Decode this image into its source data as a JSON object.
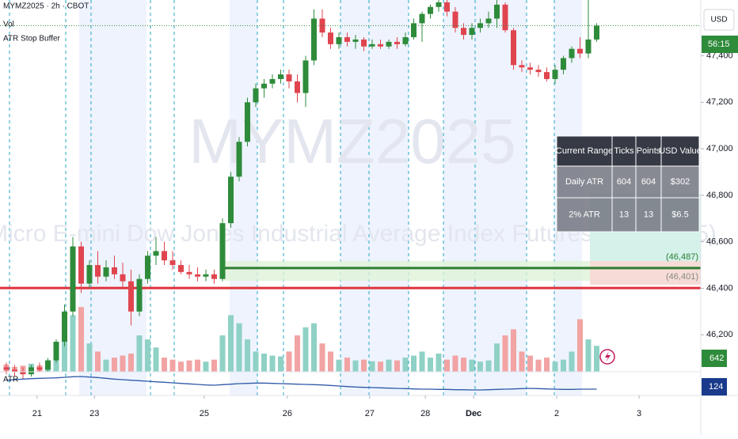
{
  "header": {
    "symbol": "MYMZ2025 · 2h · CBOT",
    "indicators": [
      "Vol",
      "ATR Stop Buffer"
    ],
    "atr_pane": "ATR",
    "currency": "USD"
  },
  "watermark": {
    "symbol": "MYMZ2025",
    "description": "Micro E-mini Dow Jones Industrial Average Index Futures (Dec 2025)"
  },
  "chart_data": {
    "type": "candlestick",
    "up_color": "#2e8b3a",
    "down_color": "#e0454f",
    "candles": [
      [
        46060,
        46080,
        46030,
        46050
      ],
      [
        46050,
        46070,
        46020,
        46040
      ],
      [
        46040,
        46060,
        46010,
        46030
      ],
      [
        46030,
        46070,
        46020,
        46060
      ],
      [
        46060,
        46080,
        46040,
        46050
      ],
      [
        46050,
        46100,
        46040,
        46090
      ],
      [
        46090,
        46180,
        46080,
        46170
      ],
      [
        46170,
        46330,
        46150,
        46300
      ],
      [
        46300,
        46620,
        46280,
        46580
      ],
      [
        46580,
        46600,
        46380,
        46420
      ],
      [
        46420,
        46520,
        46400,
        46500
      ],
      [
        46500,
        46560,
        46420,
        46450
      ],
      [
        46450,
        46520,
        46430,
        46490
      ],
      [
        46490,
        46540,
        46440,
        46460
      ],
      [
        46460,
        46510,
        46400,
        46430
      ],
      [
        46430,
        46480,
        46240,
        46300
      ],
      [
        46300,
        46460,
        46280,
        46440
      ],
      [
        46440,
        46560,
        46420,
        46540
      ],
      [
        46540,
        46620,
        46500,
        46560
      ],
      [
        46560,
        46600,
        46500,
        46520
      ],
      [
        46520,
        46560,
        46480,
        46500
      ],
      [
        46500,
        46520,
        46460,
        46470
      ],
      [
        46470,
        46500,
        46440,
        46460
      ],
      [
        46460,
        46490,
        46430,
        46450
      ],
      [
        46450,
        46480,
        46430,
        46460
      ],
      [
        46460,
        46480,
        46420,
        46440
      ],
      [
        46440,
        46700,
        46430,
        46680
      ],
      [
        46680,
        46900,
        46660,
        46880
      ],
      [
        46880,
        47050,
        46860,
        47030
      ],
      [
        47030,
        47220,
        47010,
        47200
      ],
      [
        47200,
        47280,
        47180,
        47260
      ],
      [
        47260,
        47300,
        47220,
        47280
      ],
      [
        47280,
        47320,
        47260,
        47300
      ],
      [
        47300,
        47340,
        47280,
        47320
      ],
      [
        47320,
        47340,
        47260,
        47290
      ],
      [
        47290,
        47320,
        47200,
        47240
      ],
      [
        47240,
        47400,
        47180,
        47380
      ],
      [
        47380,
        47600,
        47360,
        47560
      ],
      [
        47560,
        47600,
        47480,
        47500
      ],
      [
        47500,
        47520,
        47430,
        47450
      ],
      [
        47450,
        47500,
        47430,
        47480
      ],
      [
        47480,
        47500,
        47440,
        47460
      ],
      [
        47460,
        47490,
        47430,
        47470
      ],
      [
        47470,
        47480,
        47420,
        47440
      ],
      [
        47440,
        47470,
        47430,
        47450
      ],
      [
        47450,
        47470,
        47430,
        47440
      ],
      [
        47440,
        47470,
        47430,
        47460
      ],
      [
        47460,
        47480,
        47430,
        47450
      ],
      [
        47450,
        47500,
        47440,
        47480
      ],
      [
        47480,
        47560,
        47470,
        47540
      ],
      [
        47540,
        47590,
        47460,
        47580
      ],
      [
        47580,
        47620,
        47560,
        47610
      ],
      [
        47610,
        47640,
        47590,
        47630
      ],
      [
        47630,
        47640,
        47570,
        47590
      ],
      [
        47590,
        47610,
        47500,
        47520
      ],
      [
        47520,
        47540,
        47470,
        47490
      ],
      [
        47490,
        47540,
        47470,
        47520
      ],
      [
        47520,
        47560,
        47500,
        47540
      ],
      [
        47540,
        47590,
        47520,
        47560
      ],
      [
        47560,
        47640,
        47520,
        47620
      ],
      [
        47620,
        47630,
        47500,
        47510
      ],
      [
        47510,
        47520,
        47340,
        47360
      ],
      [
        47360,
        47380,
        47330,
        47350
      ],
      [
        47350,
        47370,
        47320,
        47340
      ],
      [
        47340,
        47360,
        47310,
        47330
      ],
      [
        47330,
        47350,
        47290,
        47300
      ],
      [
        47300,
        47360,
        47280,
        47340
      ],
      [
        47340,
        47400,
        47320,
        47390
      ],
      [
        47390,
        47440,
        47370,
        47430
      ],
      [
        47430,
        47480,
        47390,
        47410
      ],
      [
        47410,
        47640,
        47390,
        47470
      ],
      [
        47470,
        47540,
        47460,
        47530
      ]
    ],
    "ylim": [
      46000,
      47640
    ],
    "yticks": [
      {
        "value": 47400,
        "label": "47,400"
      },
      {
        "value": 47200,
        "label": "47,200"
      },
      {
        "value": 47000,
        "label": "47,000"
      },
      {
        "value": 46800,
        "label": "46,800"
      },
      {
        "value": 46600,
        "label": "46,600"
      },
      {
        "value": 46400,
        "label": "46,400"
      },
      {
        "value": 46200,
        "label": "46,200"
      }
    ],
    "time_ticks": [
      {
        "value": 3.7,
        "label": "21"
      },
      {
        "value": 10.6,
        "label": "23"
      },
      {
        "value": 23.8,
        "label": "25"
      },
      {
        "value": 33.8,
        "label": "26"
      },
      {
        "value": 43.7,
        "label": "27"
      },
      {
        "value": 50.4,
        "label": "28"
      },
      {
        "value": 56.2,
        "label": "Dec"
      },
      {
        "value": 66.2,
        "label": "2"
      },
      {
        "value": 76.1,
        "label": "3"
      }
    ],
    "last_price": 47530,
    "countdown": "56:15",
    "levels": [
      {
        "value": 46487,
        "label": "(46,487)",
        "color": "#2e7d32"
      },
      {
        "value": 46401,
        "label": "(46,401)",
        "color": "#e0303b"
      }
    ],
    "volume": {
      "ylim": [
        0,
        1800
      ],
      "up_color": "#8fd1c5",
      "down_color": "#f2a3a3",
      "values": [
        180,
        120,
        150,
        200,
        160,
        220,
        500,
        1000,
        1400,
        1600,
        700,
        500,
        300,
        350,
        400,
        450,
        900,
        800,
        600,
        350,
        300,
        250,
        280,
        300,
        250,
        300,
        900,
        1400,
        1200,
        800,
        500,
        450,
        400,
        380,
        500,
        900,
        1100,
        1200,
        700,
        500,
        300,
        350,
        280,
        300,
        260,
        250,
        300,
        280,
        350,
        400,
        500,
        350,
        450,
        300,
        400,
        350,
        300,
        250,
        280,
        700,
        900,
        1050,
        500,
        400,
        300,
        350,
        250,
        300,
        500,
        1300,
        800,
        642
      ]
    },
    "atr": {
      "ylim": [
        100,
        190
      ],
      "color": "#2f5aa8",
      "values": [
        158,
        160,
        162,
        164,
        165,
        166,
        167,
        169,
        171,
        172,
        170,
        168,
        165,
        162,
        160,
        158,
        156,
        154,
        152,
        150,
        148,
        146,
        144,
        142,
        140,
        139,
        141,
        143,
        145,
        146,
        147,
        147,
        146,
        145,
        144,
        143,
        142,
        141,
        140,
        138,
        136,
        134,
        132,
        131,
        130,
        129,
        128,
        127,
        126,
        125,
        124,
        124,
        123,
        123,
        122,
        122,
        121,
        121,
        122,
        123,
        124,
        125,
        126,
        127,
        126,
        125,
        124,
        123,
        123,
        124,
        124,
        124
      ]
    }
  },
  "table": {
    "header": [
      "Current Range",
      "Ticks",
      "Points",
      "USD Value"
    ],
    "rows": [
      [
        "Daily ATR",
        "604",
        "604",
        "$302"
      ],
      [
        "2% ATR",
        "13",
        "13",
        "$6.5"
      ]
    ]
  }
}
